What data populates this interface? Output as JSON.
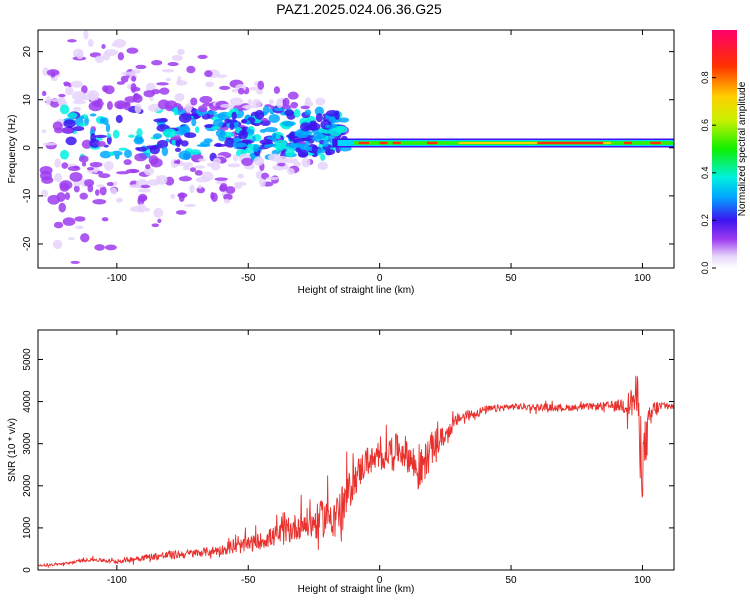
{
  "figure_title": "PAZ1.2025.024.06.36.G25",
  "chart_data": [
    {
      "type": "heatmap",
      "xlabel": "Height of straight line (km)",
      "ylabel": "Frequency (Hz)",
      "xlim": [
        -130,
        112
      ],
      "ylim": [
        -25,
        24.5
      ],
      "xticks": [
        -100,
        -50,
        0,
        50,
        100
      ],
      "yticks": [
        -20,
        -10,
        0,
        10,
        20
      ],
      "colorbar": {
        "label": "Normalized spectral amplitude",
        "range": [
          0,
          1
        ],
        "ticks": [
          "0.0",
          "0.2",
          "0.4",
          "0.6",
          "0.8"
        ],
        "colormap": "rainbow"
      },
      "features": [
        {
          "description_x_range": [
            -125,
            -15
          ],
          "freq_center": 3,
          "freq_spread": 6,
          "peak_amplitude": 0.3
        },
        {
          "description_x_range": [
            -15,
            112
          ],
          "freq_center": 1,
          "freq_spread": 0.8,
          "peak_amplitude": 0.95
        }
      ]
    },
    {
      "type": "line",
      "xlabel": "Height of straight line (km)",
      "ylabel": "SNR (10 * v/v)",
      "xlim": [
        -130,
        112
      ],
      "ylim": [
        0,
        5700
      ],
      "xticks": [
        -100,
        -50,
        0,
        50,
        100
      ],
      "yticks": [
        0,
        1000,
        2000,
        3000,
        4000,
        5000
      ],
      "color": "#e8302c",
      "series": [
        {
          "x": [
            -130,
            -120,
            -110,
            -100,
            -90,
            -80,
            -70,
            -60,
            -50,
            -45,
            -40,
            -35,
            -30,
            -25,
            -20,
            -15,
            -12,
            -10,
            -8,
            -5,
            0,
            5,
            10,
            15,
            20,
            25,
            30,
            40,
            50,
            60,
            70,
            80,
            90,
            95,
            98,
            100,
            102,
            104,
            108,
            112
          ],
          "values": [
            100,
            150,
            250,
            200,
            300,
            350,
            400,
            480,
            600,
            700,
            800,
            900,
            1100,
            1100,
            1300,
            1400,
            1800,
            2100,
            2300,
            2600,
            2600,
            2900,
            2800,
            2300,
            2900,
            3200,
            3600,
            3800,
            3880,
            3870,
            3850,
            3880,
            3900,
            3950,
            4100,
            2500,
            3300,
            3800,
            3900,
            3880
          ],
          "noise": [
            20,
            30,
            40,
            50,
            80,
            100,
            100,
            120,
            200,
            200,
            250,
            300,
            350,
            400,
            500,
            500,
            500,
            400,
            400,
            350,
            300,
            350,
            400,
            500,
            400,
            200,
            150,
            100,
            80,
            80,
            80,
            80,
            120,
            300,
            600,
            900,
            500,
            250,
            100,
            80
          ]
        }
      ]
    }
  ]
}
